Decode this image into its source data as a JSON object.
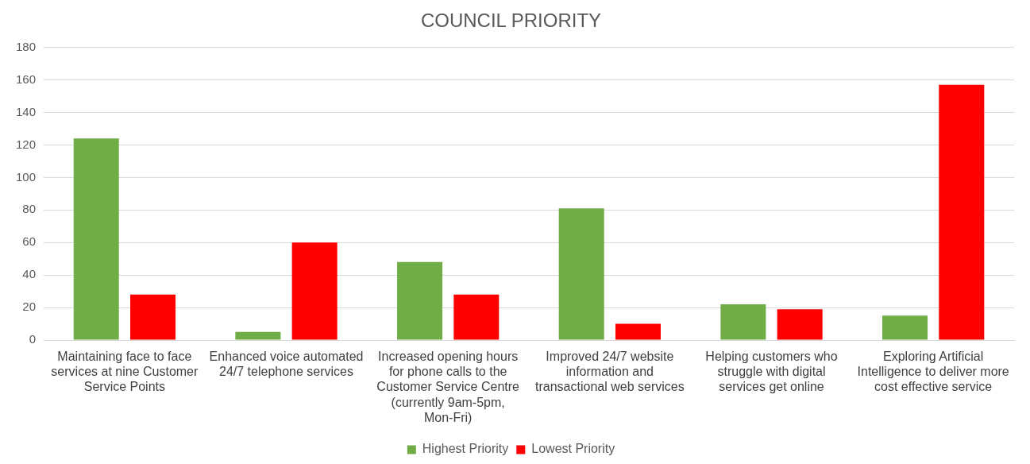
{
  "chart_data": {
    "type": "bar",
    "title": "COUNCIL PRIORITY",
    "categories": [
      "Maintaining face to face services at nine Customer Service Points",
      "Enhanced voice automated 24/7 telephone services",
      "Increased opening hours for phone calls to the Customer Service Centre (currently 9am-5pm, Mon-Fri)",
      "Improved 24/7 website information and transactional web services",
      "Helping customers who struggle with digital services get online",
      "Exploring Artificial Intelligence to deliver more cost effective service"
    ],
    "series": [
      {
        "name": "Highest Priority",
        "color": "#70ad47",
        "values": [
          124,
          5,
          48,
          81,
          22,
          15
        ]
      },
      {
        "name": "Lowest Priority",
        "color": "#ff0000",
        "values": [
          28,
          60,
          28,
          10,
          19,
          157
        ]
      }
    ],
    "ylim": [
      0,
      180
    ],
    "yticks": [
      0,
      20,
      40,
      60,
      80,
      100,
      120,
      140,
      160,
      180
    ],
    "grid": "y",
    "legend": "bottom"
  }
}
